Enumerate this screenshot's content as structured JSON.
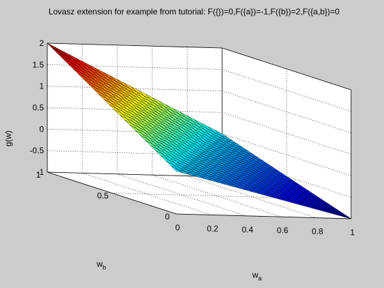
{
  "chart_data": {
    "type": "surface",
    "title": "Lovasz extension for example from tutorial: F({})=0,F({a})=-1,F({b})=2,F({a,b})=0",
    "xlabel": "w",
    "xlabel_sub": "a",
    "ylabel": "w",
    "ylabel_sub": "b",
    "zlabel": "g(w)",
    "xlim": [
      0,
      1
    ],
    "ylim": [
      0,
      1
    ],
    "zlim": [
      -1,
      2
    ],
    "x_ticks": [
      "0",
      "0.2",
      "0.4",
      "0.6",
      "0.8",
      "1"
    ],
    "y_ticks": [
      "0",
      "0.5",
      "1"
    ],
    "z_ticks": [
      "-1",
      "-0.5",
      "0",
      "0.5",
      "1",
      "1.5",
      "2"
    ],
    "set_function": {
      "F_empty": 0,
      "F_a": -1,
      "F_b": 2,
      "F_ab": 0
    },
    "grid": true,
    "mesh": 25,
    "colormap": "jet",
    "corner_values": [
      {
        "wa": 0,
        "wb": 0,
        "g": 0
      },
      {
        "wa": 1,
        "wb": 0,
        "g": -1
      },
      {
        "wa": 0,
        "wb": 1,
        "g": 2
      },
      {
        "wa": 1,
        "wb": 1,
        "g": 0
      }
    ]
  }
}
